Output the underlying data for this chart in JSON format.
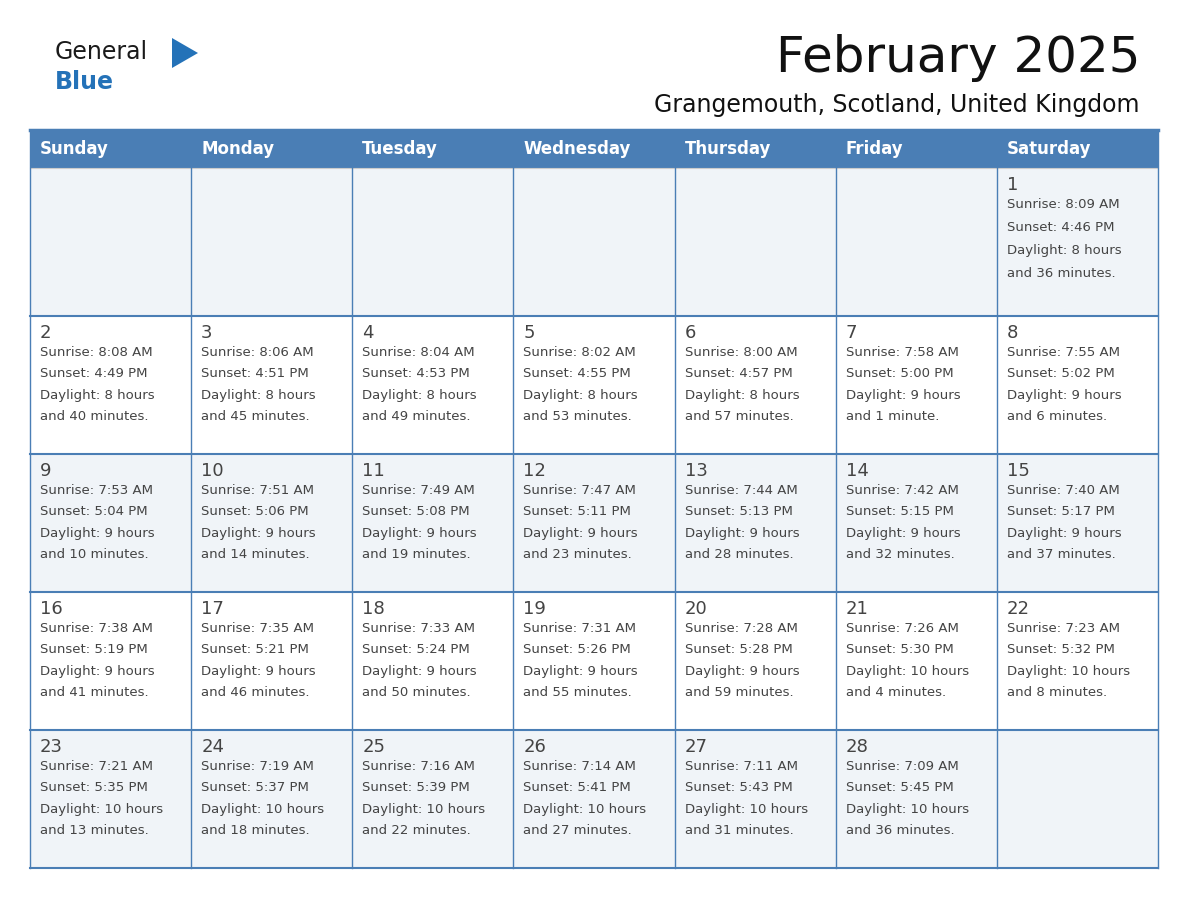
{
  "title": "February 2025",
  "subtitle": "Grangemouth, Scotland, United Kingdom",
  "header_color": "#4a7eb5",
  "header_text_color": "#ffffff",
  "cell_bg_light": "#f0f4f8",
  "cell_bg_white": "#ffffff",
  "border_color": "#4a7eb5",
  "text_color": "#444444",
  "day_number_color": "#333333",
  "day_headers": [
    "Sunday",
    "Monday",
    "Tuesday",
    "Wednesday",
    "Thursday",
    "Friday",
    "Saturday"
  ],
  "logo_color_general": "#1a1a1a",
  "logo_color_blue": "#2472b8",
  "logo_triangle_color": "#2472b8",
  "days": [
    {
      "day": 1,
      "col": 6,
      "row": 0,
      "sunrise": "8:09 AM",
      "sunset": "4:46 PM",
      "daylight": "8 hours and 36 minutes."
    },
    {
      "day": 2,
      "col": 0,
      "row": 1,
      "sunrise": "8:08 AM",
      "sunset": "4:49 PM",
      "daylight": "8 hours and 40 minutes."
    },
    {
      "day": 3,
      "col": 1,
      "row": 1,
      "sunrise": "8:06 AM",
      "sunset": "4:51 PM",
      "daylight": "8 hours and 45 minutes."
    },
    {
      "day": 4,
      "col": 2,
      "row": 1,
      "sunrise": "8:04 AM",
      "sunset": "4:53 PM",
      "daylight": "8 hours and 49 minutes."
    },
    {
      "day": 5,
      "col": 3,
      "row": 1,
      "sunrise": "8:02 AM",
      "sunset": "4:55 PM",
      "daylight": "8 hours and 53 minutes."
    },
    {
      "day": 6,
      "col": 4,
      "row": 1,
      "sunrise": "8:00 AM",
      "sunset": "4:57 PM",
      "daylight": "8 hours and 57 minutes."
    },
    {
      "day": 7,
      "col": 5,
      "row": 1,
      "sunrise": "7:58 AM",
      "sunset": "5:00 PM",
      "daylight": "9 hours and 1 minute."
    },
    {
      "day": 8,
      "col": 6,
      "row": 1,
      "sunrise": "7:55 AM",
      "sunset": "5:02 PM",
      "daylight": "9 hours and 6 minutes."
    },
    {
      "day": 9,
      "col": 0,
      "row": 2,
      "sunrise": "7:53 AM",
      "sunset": "5:04 PM",
      "daylight": "9 hours and 10 minutes."
    },
    {
      "day": 10,
      "col": 1,
      "row": 2,
      "sunrise": "7:51 AM",
      "sunset": "5:06 PM",
      "daylight": "9 hours and 14 minutes."
    },
    {
      "day": 11,
      "col": 2,
      "row": 2,
      "sunrise": "7:49 AM",
      "sunset": "5:08 PM",
      "daylight": "9 hours and 19 minutes."
    },
    {
      "day": 12,
      "col": 3,
      "row": 2,
      "sunrise": "7:47 AM",
      "sunset": "5:11 PM",
      "daylight": "9 hours and 23 minutes."
    },
    {
      "day": 13,
      "col": 4,
      "row": 2,
      "sunrise": "7:44 AM",
      "sunset": "5:13 PM",
      "daylight": "9 hours and 28 minutes."
    },
    {
      "day": 14,
      "col": 5,
      "row": 2,
      "sunrise": "7:42 AM",
      "sunset": "5:15 PM",
      "daylight": "9 hours and 32 minutes."
    },
    {
      "day": 15,
      "col": 6,
      "row": 2,
      "sunrise": "7:40 AM",
      "sunset": "5:17 PM",
      "daylight": "9 hours and 37 minutes."
    },
    {
      "day": 16,
      "col": 0,
      "row": 3,
      "sunrise": "7:38 AM",
      "sunset": "5:19 PM",
      "daylight": "9 hours and 41 minutes."
    },
    {
      "day": 17,
      "col": 1,
      "row": 3,
      "sunrise": "7:35 AM",
      "sunset": "5:21 PM",
      "daylight": "9 hours and 46 minutes."
    },
    {
      "day": 18,
      "col": 2,
      "row": 3,
      "sunrise": "7:33 AM",
      "sunset": "5:24 PM",
      "daylight": "9 hours and 50 minutes."
    },
    {
      "day": 19,
      "col": 3,
      "row": 3,
      "sunrise": "7:31 AM",
      "sunset": "5:26 PM",
      "daylight": "9 hours and 55 minutes."
    },
    {
      "day": 20,
      "col": 4,
      "row": 3,
      "sunrise": "7:28 AM",
      "sunset": "5:28 PM",
      "daylight": "9 hours and 59 minutes."
    },
    {
      "day": 21,
      "col": 5,
      "row": 3,
      "sunrise": "7:26 AM",
      "sunset": "5:30 PM",
      "daylight": "10 hours and 4 minutes."
    },
    {
      "day": 22,
      "col": 6,
      "row": 3,
      "sunrise": "7:23 AM",
      "sunset": "5:32 PM",
      "daylight": "10 hours and 8 minutes."
    },
    {
      "day": 23,
      "col": 0,
      "row": 4,
      "sunrise": "7:21 AM",
      "sunset": "5:35 PM",
      "daylight": "10 hours and 13 minutes."
    },
    {
      "day": 24,
      "col": 1,
      "row": 4,
      "sunrise": "7:19 AM",
      "sunset": "5:37 PM",
      "daylight": "10 hours and 18 minutes."
    },
    {
      "day": 25,
      "col": 2,
      "row": 4,
      "sunrise": "7:16 AM",
      "sunset": "5:39 PM",
      "daylight": "10 hours and 22 minutes."
    },
    {
      "day": 26,
      "col": 3,
      "row": 4,
      "sunrise": "7:14 AM",
      "sunset": "5:41 PM",
      "daylight": "10 hours and 27 minutes."
    },
    {
      "day": 27,
      "col": 4,
      "row": 4,
      "sunrise": "7:11 AM",
      "sunset": "5:43 PM",
      "daylight": "10 hours and 31 minutes."
    },
    {
      "day": 28,
      "col": 5,
      "row": 4,
      "sunrise": "7:09 AM",
      "sunset": "5:45 PM",
      "daylight": "10 hours and 36 minutes."
    }
  ]
}
